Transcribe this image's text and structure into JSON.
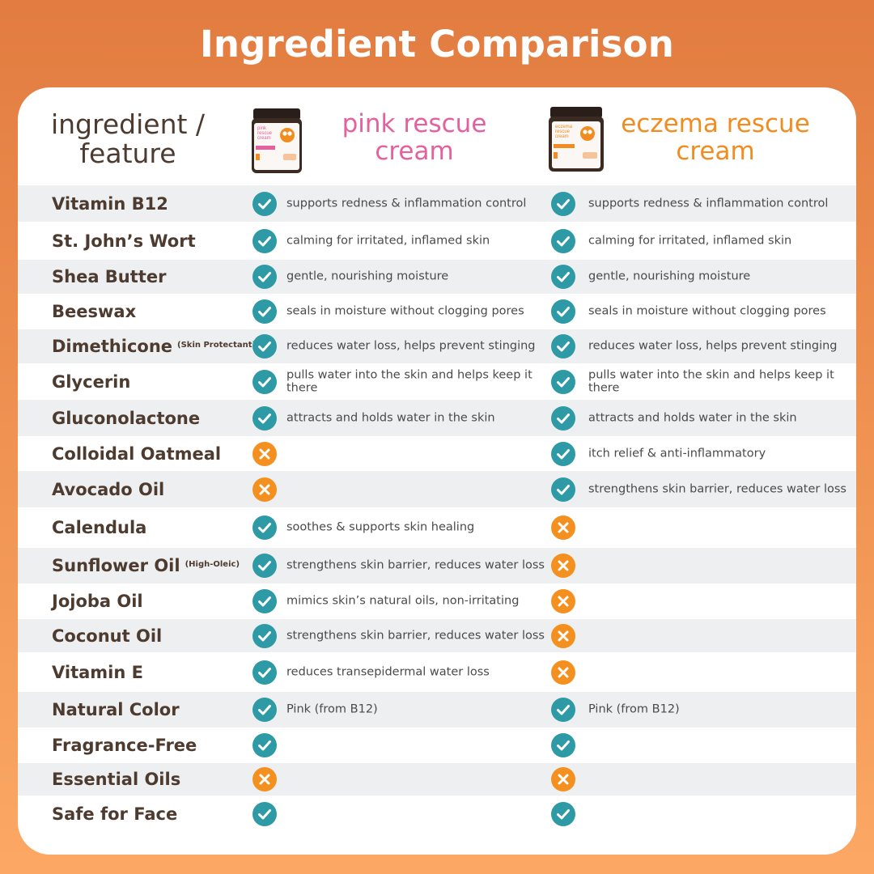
{
  "title": "Ingredient Comparison",
  "colors": {
    "background_top": "#e27c40",
    "background_bottom": "#fca864",
    "check": "#2e9aa6",
    "cross": "#f4901f",
    "pink_heading": "#e5609c",
    "eczema_heading": "#f18d20",
    "row_shade": "#eeeff0",
    "text_dark": "#4d3b30"
  },
  "header": {
    "ingredient_label": "ingredient / feature",
    "pink_product": "pink rescue cream",
    "eczema_product": "eczema rescue cream",
    "pink_jar_label": "pink rescue cream",
    "eczema_jar_label": "eczema rescue cream"
  },
  "rows": [
    {
      "ingredient": "Vitamin B12",
      "note": "",
      "pink": true,
      "pink_desc": "supports redness & inflammation control",
      "eczema": true,
      "eczema_desc": "supports redness & inflammation control"
    },
    {
      "ingredient": "St. John’s Wort",
      "note": "",
      "pink": true,
      "pink_desc": "calming for irritated, inflamed skin",
      "eczema": true,
      "eczema_desc": "calming for irritated, inflamed skin"
    },
    {
      "ingredient": "Shea Butter",
      "note": "",
      "pink": true,
      "pink_desc": "gentle, nourishing moisture",
      "eczema": true,
      "eczema_desc": "gentle, nourishing moisture"
    },
    {
      "ingredient": "Beeswax",
      "note": "",
      "pink": true,
      "pink_desc": "seals in moisture without clogging pores",
      "eczema": true,
      "eczema_desc": "seals in moisture without clogging pores"
    },
    {
      "ingredient": "Dimethicone",
      "note": "(Skin Protectant)",
      "pink": true,
      "pink_desc": "reduces water loss, helps prevent stinging",
      "eczema": true,
      "eczema_desc": "reduces water loss, helps prevent stinging"
    },
    {
      "ingredient": "Glycerin",
      "note": "",
      "pink": true,
      "pink_desc": "pulls water into the skin and helps keep it there",
      "eczema": true,
      "eczema_desc": "pulls water into the skin and helps keep it there"
    },
    {
      "ingredient": "Gluconolactone",
      "note": "",
      "pink": true,
      "pink_desc": "attracts and holds water in the skin",
      "eczema": true,
      "eczema_desc": "attracts and holds water in the skin"
    },
    {
      "ingredient": "Colloidal Oatmeal",
      "note": "",
      "pink": false,
      "pink_desc": "",
      "eczema": true,
      "eczema_desc": "itch relief & anti-inflammatory"
    },
    {
      "ingredient": "Avocado Oil",
      "note": "",
      "pink": false,
      "pink_desc": "",
      "eczema": true,
      "eczema_desc": "strengthens skin barrier, reduces water loss"
    },
    {
      "ingredient": "Calendula",
      "note": "",
      "pink": true,
      "pink_desc": "soothes & supports skin healing",
      "eczema": false,
      "eczema_desc": ""
    },
    {
      "ingredient": "Sunflower Oil",
      "note": "(High-Oleic)",
      "pink": true,
      "pink_desc": "strengthens skin barrier, reduces water loss",
      "eczema": false,
      "eczema_desc": ""
    },
    {
      "ingredient": "Jojoba Oil",
      "note": "",
      "pink": true,
      "pink_desc": "mimics skin’s natural oils, non-irritating",
      "eczema": false,
      "eczema_desc": ""
    },
    {
      "ingredient": "Coconut Oil",
      "note": "",
      "pink": true,
      "pink_desc": "strengthens skin barrier, reduces water loss",
      "eczema": false,
      "eczema_desc": ""
    },
    {
      "ingredient": "Vitamin E",
      "note": "",
      "pink": true,
      "pink_desc": "reduces transepidermal water loss",
      "eczema": false,
      "eczema_desc": ""
    },
    {
      "ingredient": "Natural Color",
      "note": "",
      "pink": true,
      "pink_desc": "Pink (from B12)",
      "eczema": true,
      "eczema_desc": "Pink (from B12)"
    },
    {
      "ingredient": "Fragrance-Free",
      "note": "",
      "pink": true,
      "pink_desc": "",
      "eczema": true,
      "eczema_desc": ""
    },
    {
      "ingredient": "Essential Oils",
      "note": "",
      "pink": false,
      "pink_desc": "",
      "eczema": false,
      "eczema_desc": ""
    },
    {
      "ingredient": "Safe for Face",
      "note": "",
      "pink": true,
      "pink_desc": "",
      "eczema": true,
      "eczema_desc": ""
    }
  ]
}
